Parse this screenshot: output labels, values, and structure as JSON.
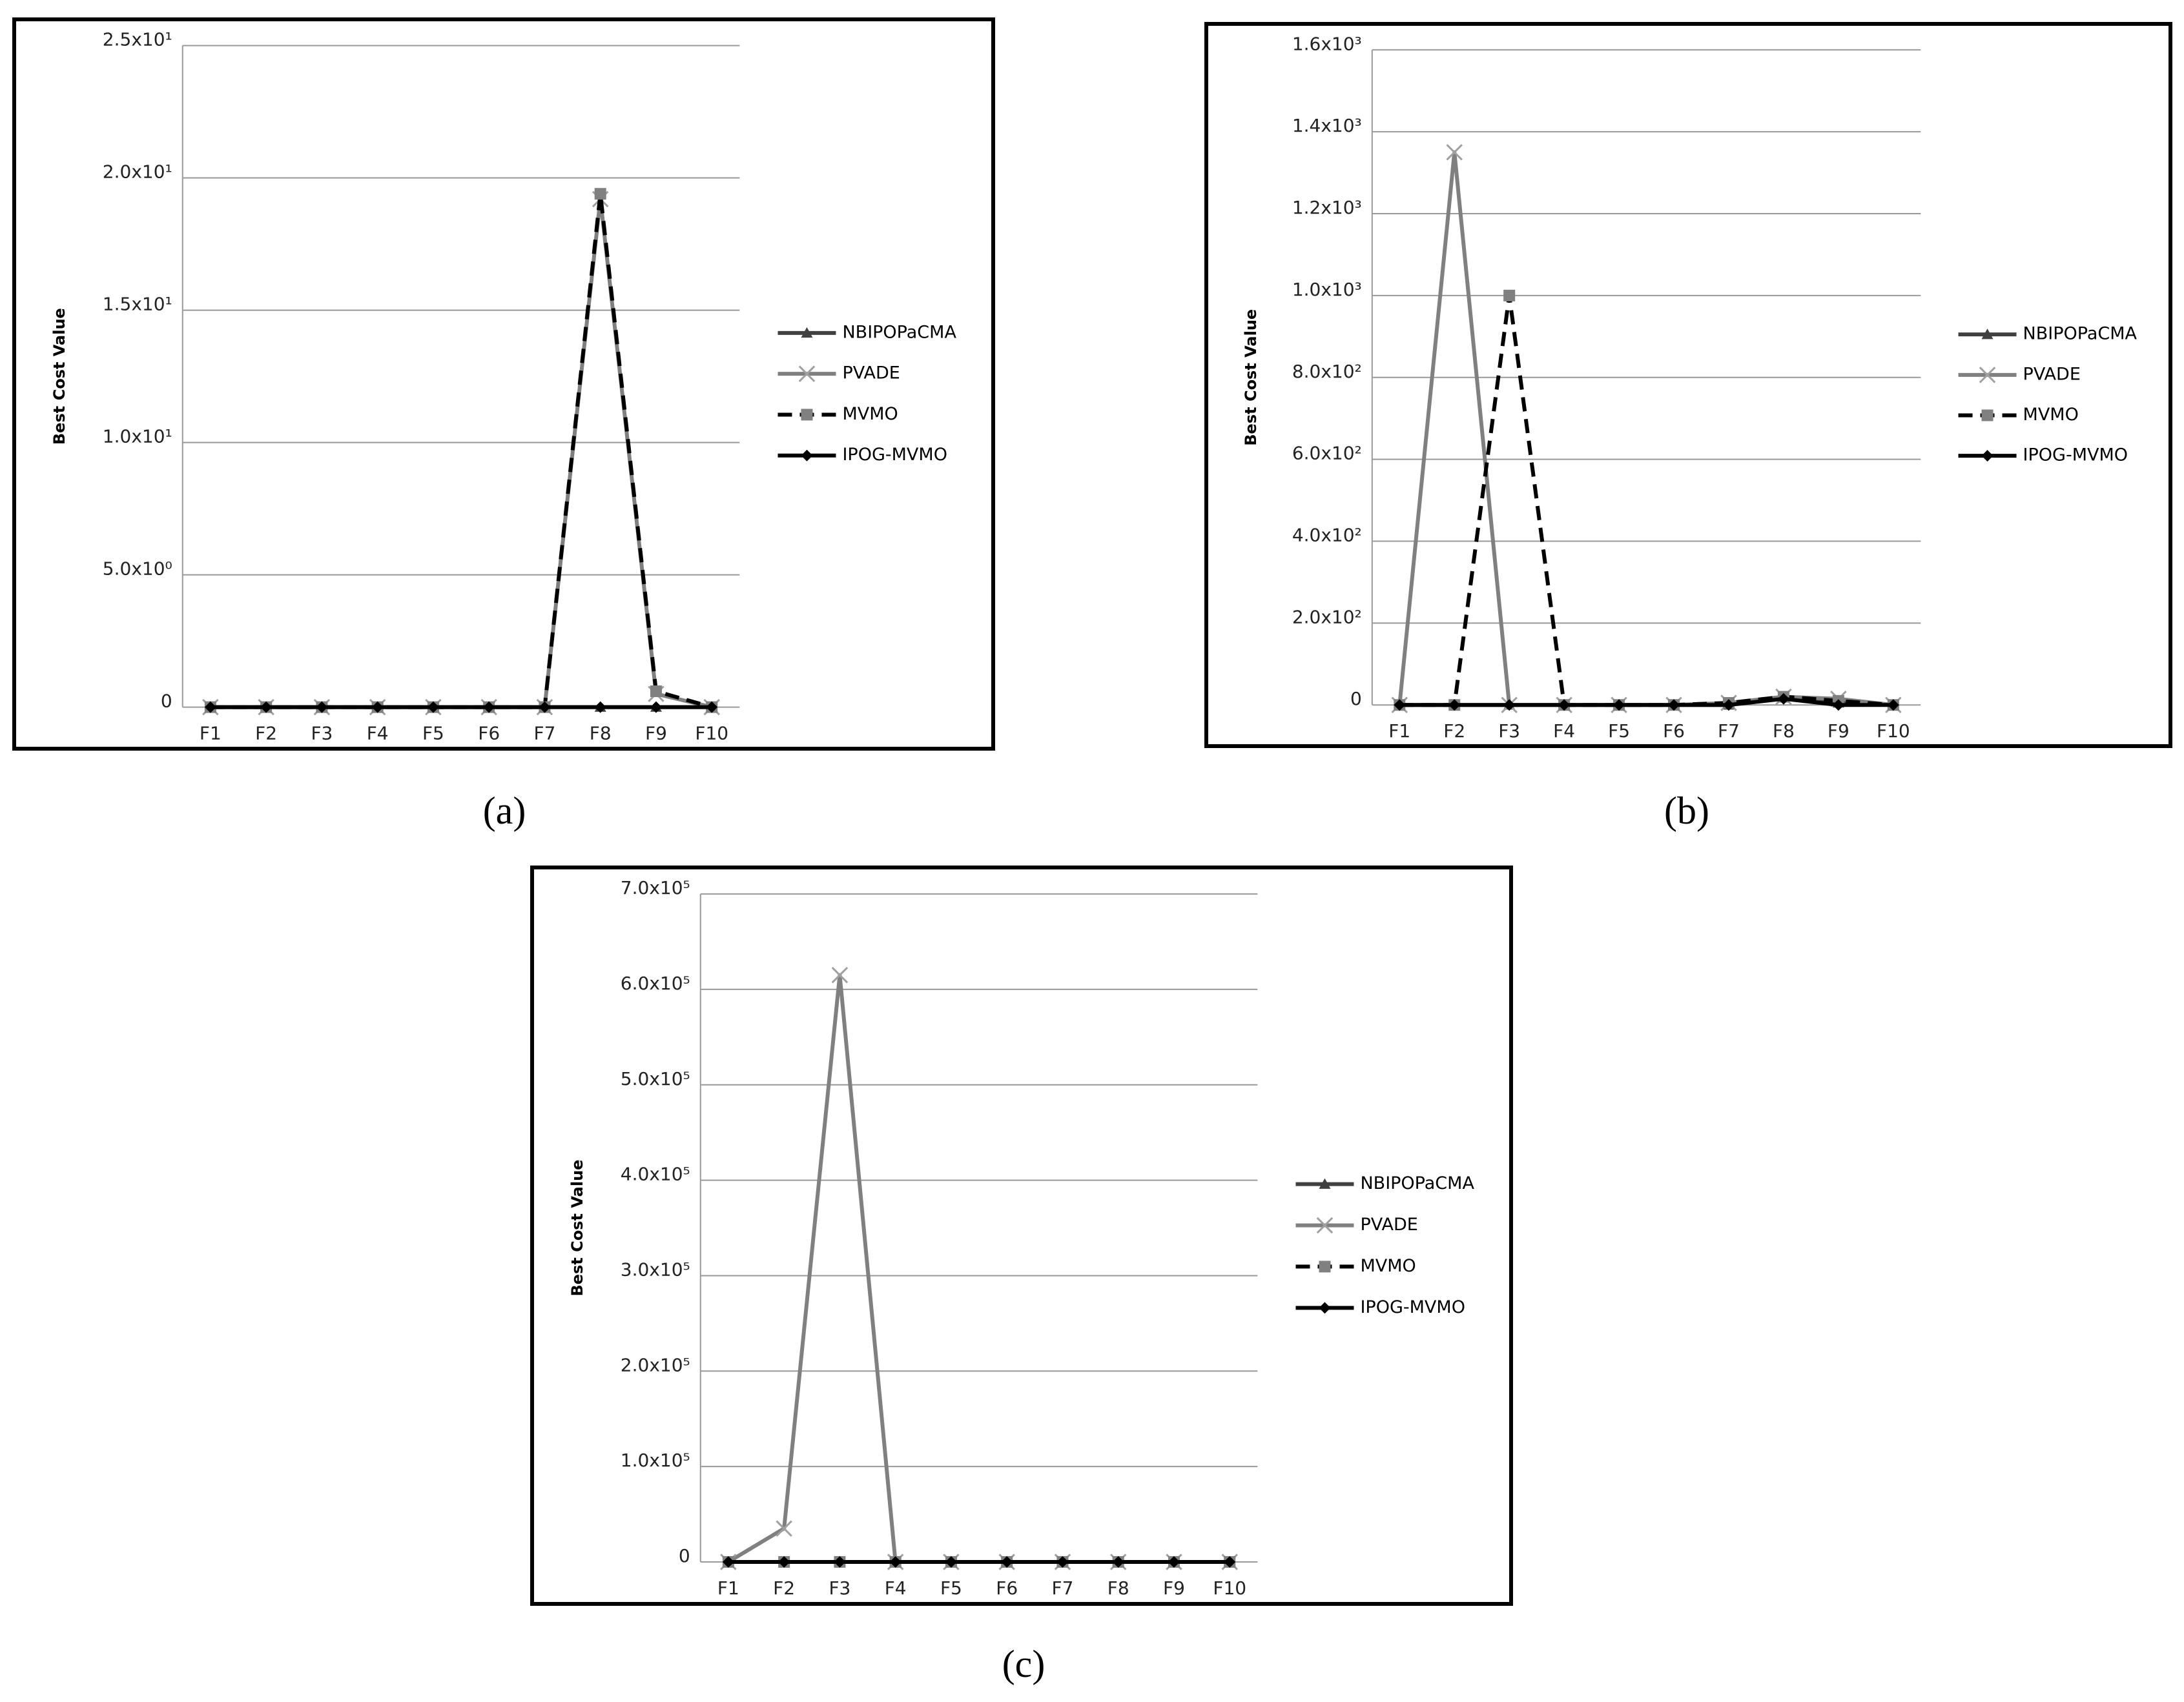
{
  "chart_data": [
    {
      "type": "line",
      "caption": "(a)",
      "y_label": "Best Cost Value",
      "categories": [
        "F1",
        "F2",
        "F3",
        "F4",
        "F5",
        "F6",
        "F7",
        "F8",
        "F9",
        "F10"
      ],
      "ylim": [
        0,
        25
      ],
      "yticks": [
        0,
        {
          "value": 5,
          "label": "5.0x10⁰"
        },
        {
          "value": 10,
          "label": "1.0x10¹"
        },
        {
          "value": 15,
          "label": "1.5x10¹"
        },
        {
          "value": 20,
          "label": "2.0x10¹"
        },
        {
          "value": 25,
          "label": "2.5x10¹"
        }
      ],
      "grid": true,
      "legend": "right",
      "series": [
        {
          "name": "NBIPOPaCMA",
          "color": "#404040",
          "marker": "triangle",
          "marker_color": "#404040",
          "dashed": false,
          "values": [
            0,
            0,
            0,
            0,
            0,
            0,
            0,
            0,
            0,
            0
          ]
        },
        {
          "name": "PVADE",
          "color": "#808080",
          "marker": "x",
          "marker_color": "#a0a0a0",
          "dashed": false,
          "values": [
            0,
            0,
            0,
            0,
            0,
            0,
            0,
            19.2,
            0.5,
            0
          ]
        },
        {
          "name": "MVMO",
          "color": "#000000",
          "marker": "square",
          "marker_color": "#808080",
          "dashed": true,
          "values": [
            0,
            0,
            0,
            0,
            0,
            0,
            0,
            19.4,
            0.6,
            0
          ]
        },
        {
          "name": "IPOG-MVMO",
          "color": "#000000",
          "marker": "diamond",
          "marker_color": "#000000",
          "dashed": false,
          "values": [
            0,
            0,
            0,
            0,
            0,
            0,
            0,
            0,
            0,
            0
          ]
        }
      ]
    },
    {
      "type": "line",
      "caption": "(b)",
      "y_label": "Best Cost Value",
      "categories": [
        "F1",
        "F2",
        "F3",
        "F4",
        "F5",
        "F6",
        "F7",
        "F8",
        "F9",
        "F10"
      ],
      "ylim": [
        0,
        1600
      ],
      "yticks": [
        0,
        {
          "value": 200,
          "label": "2.0x10²"
        },
        {
          "value": 400,
          "label": "4.0x10²"
        },
        {
          "value": 600,
          "label": "6.0x10²"
        },
        {
          "value": 800,
          "label": "8.0x10²"
        },
        {
          "value": 1000,
          "label": "1.0x10³"
        },
        {
          "value": 1200,
          "label": "1.2x10³"
        },
        {
          "value": 1400,
          "label": "1.4x10³"
        },
        {
          "value": 1600,
          "label": "1.6x10³"
        }
      ],
      "grid": true,
      "legend": "right",
      "series": [
        {
          "name": "NBIPOPaCMA",
          "color": "#404040",
          "marker": "triangle",
          "marker_color": "#404040",
          "dashed": false,
          "values": [
            0,
            0,
            0,
            0,
            0,
            0,
            0,
            20,
            5,
            0
          ]
        },
        {
          "name": "PVADE",
          "color": "#808080",
          "marker": "x",
          "marker_color": "#a0a0a0",
          "dashed": false,
          "values": [
            0,
            1350,
            0,
            0,
            0,
            0,
            5,
            20,
            15,
            0
          ]
        },
        {
          "name": "MVMO",
          "color": "#000000",
          "marker": "square",
          "marker_color": "#808080",
          "dashed": true,
          "values": [
            0,
            0,
            1000,
            0,
            0,
            0,
            5,
            20,
            10,
            0
          ]
        },
        {
          "name": "IPOG-MVMO",
          "color": "#000000",
          "marker": "diamond",
          "marker_color": "#000000",
          "dashed": false,
          "values": [
            0,
            0,
            0,
            0,
            0,
            0,
            0,
            15,
            0,
            0
          ]
        }
      ]
    },
    {
      "type": "line",
      "caption": "(c)",
      "y_label": "Best Cost Value",
      "categories": [
        "F1",
        "F2",
        "F3",
        "F4",
        "F5",
        "F6",
        "F7",
        "F8",
        "F9",
        "F10"
      ],
      "ylim": [
        0,
        700000
      ],
      "yticks": [
        0,
        {
          "value": 100000,
          "label": "1.0x10⁵"
        },
        {
          "value": 200000,
          "label": "2.0x10⁵"
        },
        {
          "value": 300000,
          "label": "3.0x10⁵"
        },
        {
          "value": 400000,
          "label": "4.0x10⁵"
        },
        {
          "value": 500000,
          "label": "5.0x10⁵"
        },
        {
          "value": 600000,
          "label": "6.0x10⁵"
        },
        {
          "value": 700000,
          "label": "7.0x10⁵"
        }
      ],
      "grid": true,
      "legend": "right",
      "series": [
        {
          "name": "NBIPOPaCMA",
          "color": "#404040",
          "marker": "triangle",
          "marker_color": "#404040",
          "dashed": false,
          "values": [
            0,
            0,
            0,
            0,
            0,
            0,
            0,
            0,
            0,
            0
          ]
        },
        {
          "name": "PVADE",
          "color": "#808080",
          "marker": "x",
          "marker_color": "#a0a0a0",
          "dashed": false,
          "values": [
            0,
            35000,
            615000,
            0,
            0,
            0,
            0,
            0,
            0,
            0
          ]
        },
        {
          "name": "MVMO",
          "color": "#000000",
          "marker": "square",
          "marker_color": "#808080",
          "dashed": true,
          "values": [
            0,
            0,
            0,
            0,
            0,
            0,
            0,
            0,
            0,
            0
          ]
        },
        {
          "name": "IPOG-MVMO",
          "color": "#000000",
          "marker": "diamond",
          "marker_color": "#000000",
          "dashed": false,
          "values": [
            0,
            0,
            0,
            0,
            0,
            0,
            0,
            0,
            0,
            0
          ]
        }
      ]
    }
  ]
}
